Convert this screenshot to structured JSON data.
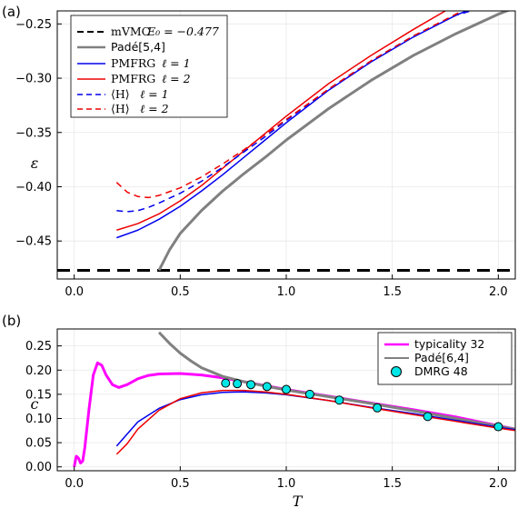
{
  "chart_data": [
    {
      "panel": "(a)",
      "type": "line",
      "ylabel": "ε",
      "xlim": [
        -0.08,
        2.08
      ],
      "ylim": [
        -0.485,
        -0.238
      ],
      "xticks": [
        "0.0",
        "0.5",
        "1.0",
        "1.5",
        "2.0"
      ],
      "yticks": [
        "-0.45",
        "-0.40",
        "-0.35",
        "-0.30",
        "-0.25"
      ],
      "legend_position": "upper-left",
      "series": [
        {
          "name": "mVMC E₀ = −0.477",
          "color": "#000000",
          "style": "dashed-thick",
          "x": [
            -0.08,
            2.08
          ],
          "y": [
            -0.477,
            -0.477
          ]
        },
        {
          "name": "Padé[5,4]",
          "color": "#808080",
          "style": "solid-thick",
          "x": [
            0.4,
            0.45,
            0.5,
            0.6,
            0.7,
            0.8,
            0.9,
            1.0,
            1.2,
            1.4,
            1.6,
            1.8,
            2.0,
            2.08
          ],
          "y": [
            -0.477,
            -0.458,
            -0.443,
            -0.422,
            -0.404,
            -0.388,
            -0.373,
            -0.357,
            -0.328,
            -0.302,
            -0.279,
            -0.259,
            -0.241,
            -0.235
          ]
        },
        {
          "name": "PMFRG ℓ = 1",
          "color": "#0000ee",
          "style": "solid",
          "x": [
            0.2,
            0.3,
            0.4,
            0.5,
            0.6,
            0.7,
            0.8,
            0.9,
            1.0,
            1.2,
            1.4,
            1.6,
            1.8,
            1.85
          ],
          "y": [
            -0.447,
            -0.44,
            -0.43,
            -0.418,
            -0.404,
            -0.389,
            -0.373,
            -0.357,
            -0.341,
            -0.311,
            -0.285,
            -0.262,
            -0.242,
            -0.238
          ]
        },
        {
          "name": "PMFRG ℓ = 2",
          "color": "#ee0000",
          "style": "solid",
          "x": [
            0.2,
            0.3,
            0.4,
            0.5,
            0.6,
            0.7,
            0.8,
            0.9,
            1.0,
            1.2,
            1.4,
            1.6,
            1.75
          ],
          "y": [
            -0.44,
            -0.434,
            -0.425,
            -0.413,
            -0.399,
            -0.383,
            -0.367,
            -0.351,
            -0.335,
            -0.305,
            -0.279,
            -0.255,
            -0.238
          ]
        },
        {
          "name": "⟨H⟩ ℓ = 1",
          "color": "#0000ee",
          "style": "dashed",
          "x": [
            0.2,
            0.25,
            0.3,
            0.35,
            0.4,
            0.5,
            0.6,
            0.7,
            0.8,
            0.9,
            1.0,
            1.2,
            1.4,
            1.6,
            1.8,
            1.87
          ],
          "y": [
            -0.422,
            -0.423,
            -0.422,
            -0.419,
            -0.415,
            -0.406,
            -0.395,
            -0.382,
            -0.368,
            -0.354,
            -0.339,
            -0.31,
            -0.284,
            -0.261,
            -0.242,
            -0.238
          ]
        },
        {
          "name": "⟨H⟩ ℓ = 2",
          "color": "#ee0000",
          "style": "dashed",
          "x": [
            0.2,
            0.25,
            0.3,
            0.35,
            0.4,
            0.5,
            0.6,
            0.7,
            0.8,
            0.9,
            1.0,
            1.2,
            1.4,
            1.6,
            1.8,
            1.83
          ],
          "y": [
            -0.396,
            -0.405,
            -0.409,
            -0.41,
            -0.408,
            -0.401,
            -0.391,
            -0.379,
            -0.366,
            -0.352,
            -0.338,
            -0.31,
            -0.284,
            -0.261,
            -0.241,
            -0.238
          ]
        }
      ]
    },
    {
      "panel": "(b)",
      "type": "line",
      "xlabel": "T",
      "ylabel": "c",
      "xlim": [
        -0.08,
        2.08
      ],
      "ylim": [
        -0.008,
        0.285
      ],
      "xticks": [
        "0.0",
        "0.5",
        "1.0",
        "1.5",
        "2.0"
      ],
      "yticks": [
        "0.00",
        "0.05",
        "0.10",
        "0.15",
        "0.20",
        "0.25"
      ],
      "legend_position": "upper-right",
      "series": [
        {
          "name": "typicality 32",
          "color": "#ff00ff",
          "style": "solid-thick",
          "x": [
            0.0,
            0.005,
            0.01,
            0.02,
            0.03,
            0.04,
            0.05,
            0.07,
            0.09,
            0.11,
            0.13,
            0.15,
            0.18,
            0.21,
            0.25,
            0.3,
            0.35,
            0.4,
            0.5,
            0.6,
            0.7,
            0.8,
            0.9,
            1.0,
            1.2,
            1.4,
            1.6,
            1.8,
            2.0,
            2.08
          ],
          "y": [
            0.0,
            0.012,
            0.022,
            0.018,
            0.008,
            0.012,
            0.04,
            0.12,
            0.19,
            0.215,
            0.21,
            0.19,
            0.17,
            0.164,
            0.17,
            0.182,
            0.189,
            0.192,
            0.193,
            0.19,
            0.184,
            0.176,
            0.168,
            0.16,
            0.146,
            0.132,
            0.118,
            0.103,
            0.085,
            0.078
          ]
        },
        {
          "name": "Padé[6,4]",
          "color": "#808080",
          "style": "solid-thick",
          "x": [
            0.4,
            0.45,
            0.5,
            0.55,
            0.6,
            0.7,
            0.8,
            0.9,
            1.0,
            1.2,
            1.4,
            1.6,
            1.8,
            2.0,
            2.08
          ],
          "y": [
            0.278,
            0.255,
            0.235,
            0.219,
            0.205,
            0.187,
            0.176,
            0.167,
            0.159,
            0.145,
            0.131,
            0.116,
            0.1,
            0.084,
            0.078
          ]
        },
        {
          "name": "PMFRG ℓ = 1",
          "color": "#0000ee",
          "style": "solid",
          "x": [
            0.2,
            0.25,
            0.3,
            0.4,
            0.5,
            0.6,
            0.7,
            0.8,
            0.9,
            1.0,
            1.2,
            1.4,
            1.6,
            1.8,
            2.0,
            2.08
          ],
          "y": [
            0.043,
            0.068,
            0.093,
            0.121,
            0.139,
            0.149,
            0.154,
            0.155,
            0.153,
            0.149,
            0.137,
            0.123,
            0.11,
            0.096,
            0.082,
            0.077
          ]
        },
        {
          "name": "PMFRG ℓ = 2",
          "color": "#ee0000",
          "style": "solid",
          "x": [
            0.2,
            0.25,
            0.3,
            0.4,
            0.5,
            0.6,
            0.7,
            0.8,
            0.9,
            1.0,
            1.2,
            1.4,
            1.6,
            1.8,
            2.0,
            2.08
          ],
          "y": [
            0.026,
            0.048,
            0.078,
            0.117,
            0.141,
            0.153,
            0.158,
            0.158,
            0.155,
            0.15,
            0.137,
            0.122,
            0.108,
            0.094,
            0.08,
            0.075
          ]
        },
        {
          "name": "DMRG 48",
          "color": "#00e5e5",
          "style": "markers",
          "x": [
            0.714,
            0.769,
            0.833,
            0.909,
            1.0,
            1.111,
            1.25,
            1.429,
            1.667,
            2.0
          ],
          "y": [
            0.173,
            0.172,
            0.17,
            0.166,
            0.16,
            0.15,
            0.138,
            0.122,
            0.104,
            0.083
          ]
        }
      ]
    }
  ],
  "legend_a": {
    "mvmc_label": "mVMC",
    "mvmc_value": "E₀ = −0.477",
    "pade_label": "Padé[5,4]",
    "pmfrg1_label": "PMFRG",
    "pmfrg1_value": "ℓ = 1",
    "pmfrg2_label": "PMFRG",
    "pmfrg2_value": "ℓ = 2",
    "h1_label": "⟨H⟩",
    "h1_value": "ℓ = 1",
    "h2_label": "⟨H⟩",
    "h2_value": "ℓ = 2"
  },
  "legend_b": {
    "typicality_label": "typicality 32",
    "pade_label": "Padé[6,4]",
    "dmrg_label": "DMRG 48"
  },
  "panel_labels": {
    "a": "(a)",
    "b": "(b)"
  },
  "axis_titles": {
    "a_y": "ε",
    "b_y": "c",
    "b_x": "T"
  }
}
